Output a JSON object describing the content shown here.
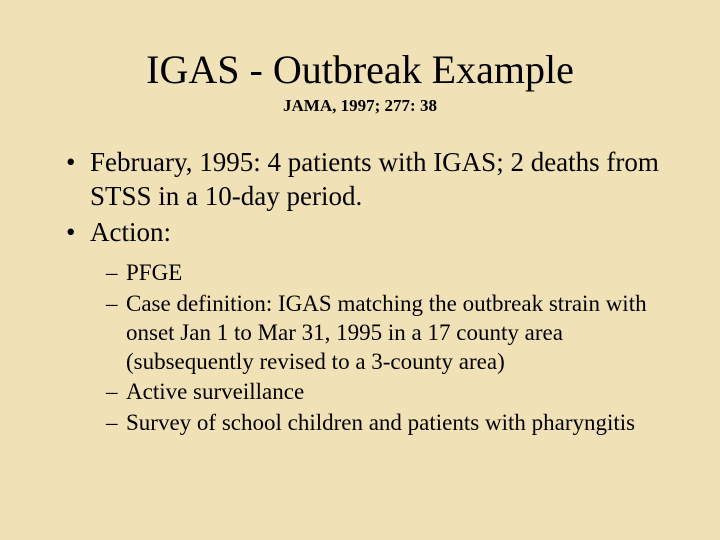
{
  "slide": {
    "background_color": "#f0e2b6",
    "text_color": "#000000",
    "font_family": "Times New Roman",
    "title": "IGAS - Outbreak Example",
    "title_fontsize": 40,
    "title_weight": 400,
    "subtitle": "JAMA, 1997; 277: 38",
    "subtitle_fontsize": 17,
    "subtitle_weight": 700,
    "bullets": [
      {
        "marker": "•",
        "text": "February, 1995:  4 patients with IGAS; 2 deaths from STSS in a 10-day period."
      },
      {
        "marker": "•",
        "text": "Action:"
      }
    ],
    "bullet_fontsize": 27,
    "sub_bullets": [
      {
        "marker": "–",
        "text": "PFGE"
      },
      {
        "marker": "–",
        "text": "Case definition:  IGAS matching the outbreak strain with onset Jan 1 to Mar 31, 1995 in a 17 county area (subsequently revised to a 3-county area)"
      },
      {
        "marker": "–",
        "text": "Active surveillance"
      },
      {
        "marker": "–",
        "text": "Survey of school children and patients with pharyngitis"
      }
    ],
    "sub_bullet_fontsize": 23
  }
}
